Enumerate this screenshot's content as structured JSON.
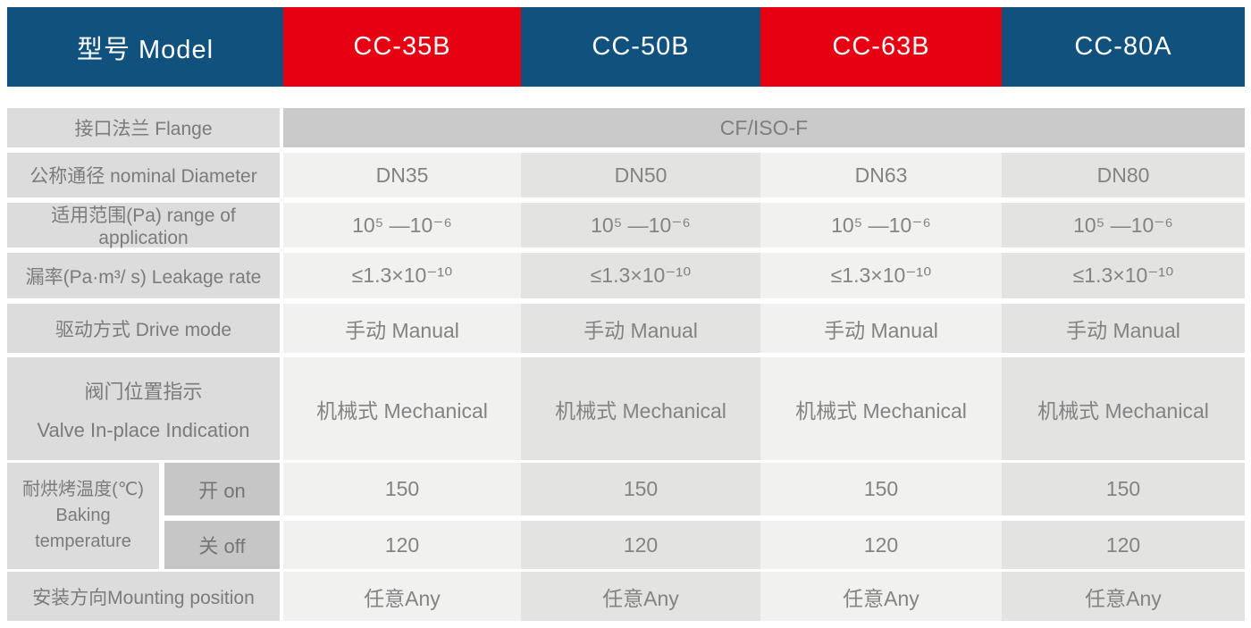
{
  "colors": {
    "header_blue": "#11517E",
    "header_red": "#E60012",
    "label_cell_bg": "#DCDCDC",
    "sub_cell_bg": "#C6C6C6",
    "merged_value_bg": "#CACACA",
    "value_col_light": "#F1F1F0",
    "value_col_dark": "#E3E3E2",
    "body_text": "#7B7B7B",
    "header_text": "#FFFFFF"
  },
  "header": {
    "model_label": "型号 Model",
    "models": [
      "CC-35B",
      "CC-50B",
      "CC-63B",
      "CC-80A"
    ]
  },
  "rows": {
    "flange": {
      "label": "接口法兰 Flange",
      "value": "CF/ISO-F"
    },
    "diameter": {
      "label": "公称通径 nominal Diameter",
      "values": [
        "DN35",
        "DN50",
        "DN63",
        "DN80"
      ]
    },
    "range": {
      "label": "适用范围(Pa) range of application",
      "values": [
        "10⁵ —10⁻⁶",
        "10⁵ —10⁻⁶",
        "10⁵ —10⁻⁶",
        "10⁵ —10⁻⁶"
      ]
    },
    "leakage": {
      "label": "漏率(Pa·m³/ s) Leakage rate",
      "values": [
        "≤1.3×10⁻¹⁰",
        "≤1.3×10⁻¹⁰",
        "≤1.3×10⁻¹⁰",
        "≤1.3×10⁻¹⁰"
      ]
    },
    "drive": {
      "label": "驱动方式 Drive mode",
      "values": [
        "手动 Manual",
        "手动 Manual",
        "手动 Manual",
        "手动 Manual"
      ]
    },
    "indication": {
      "label_line1": "阀门位置指示",
      "label_line2": "Valve In-place Indication",
      "values": [
        "机械式 Mechanical",
        "机械式 Mechanical",
        "机械式 Mechanical",
        "机械式 Mechanical"
      ]
    },
    "baking": {
      "label_line1": "耐烘烤温度(℃)",
      "label_line2": "Baking",
      "label_line3": "temperature",
      "on_label": "开 on",
      "off_label": "关 off",
      "on_values": [
        "150",
        "150",
        "150",
        "150"
      ],
      "off_values": [
        "120",
        "120",
        "120",
        "120"
      ]
    },
    "mounting": {
      "label": "安装方向Mounting position",
      "values": [
        "任意Any",
        "任意Any",
        "任意Any",
        "任意Any"
      ]
    }
  }
}
